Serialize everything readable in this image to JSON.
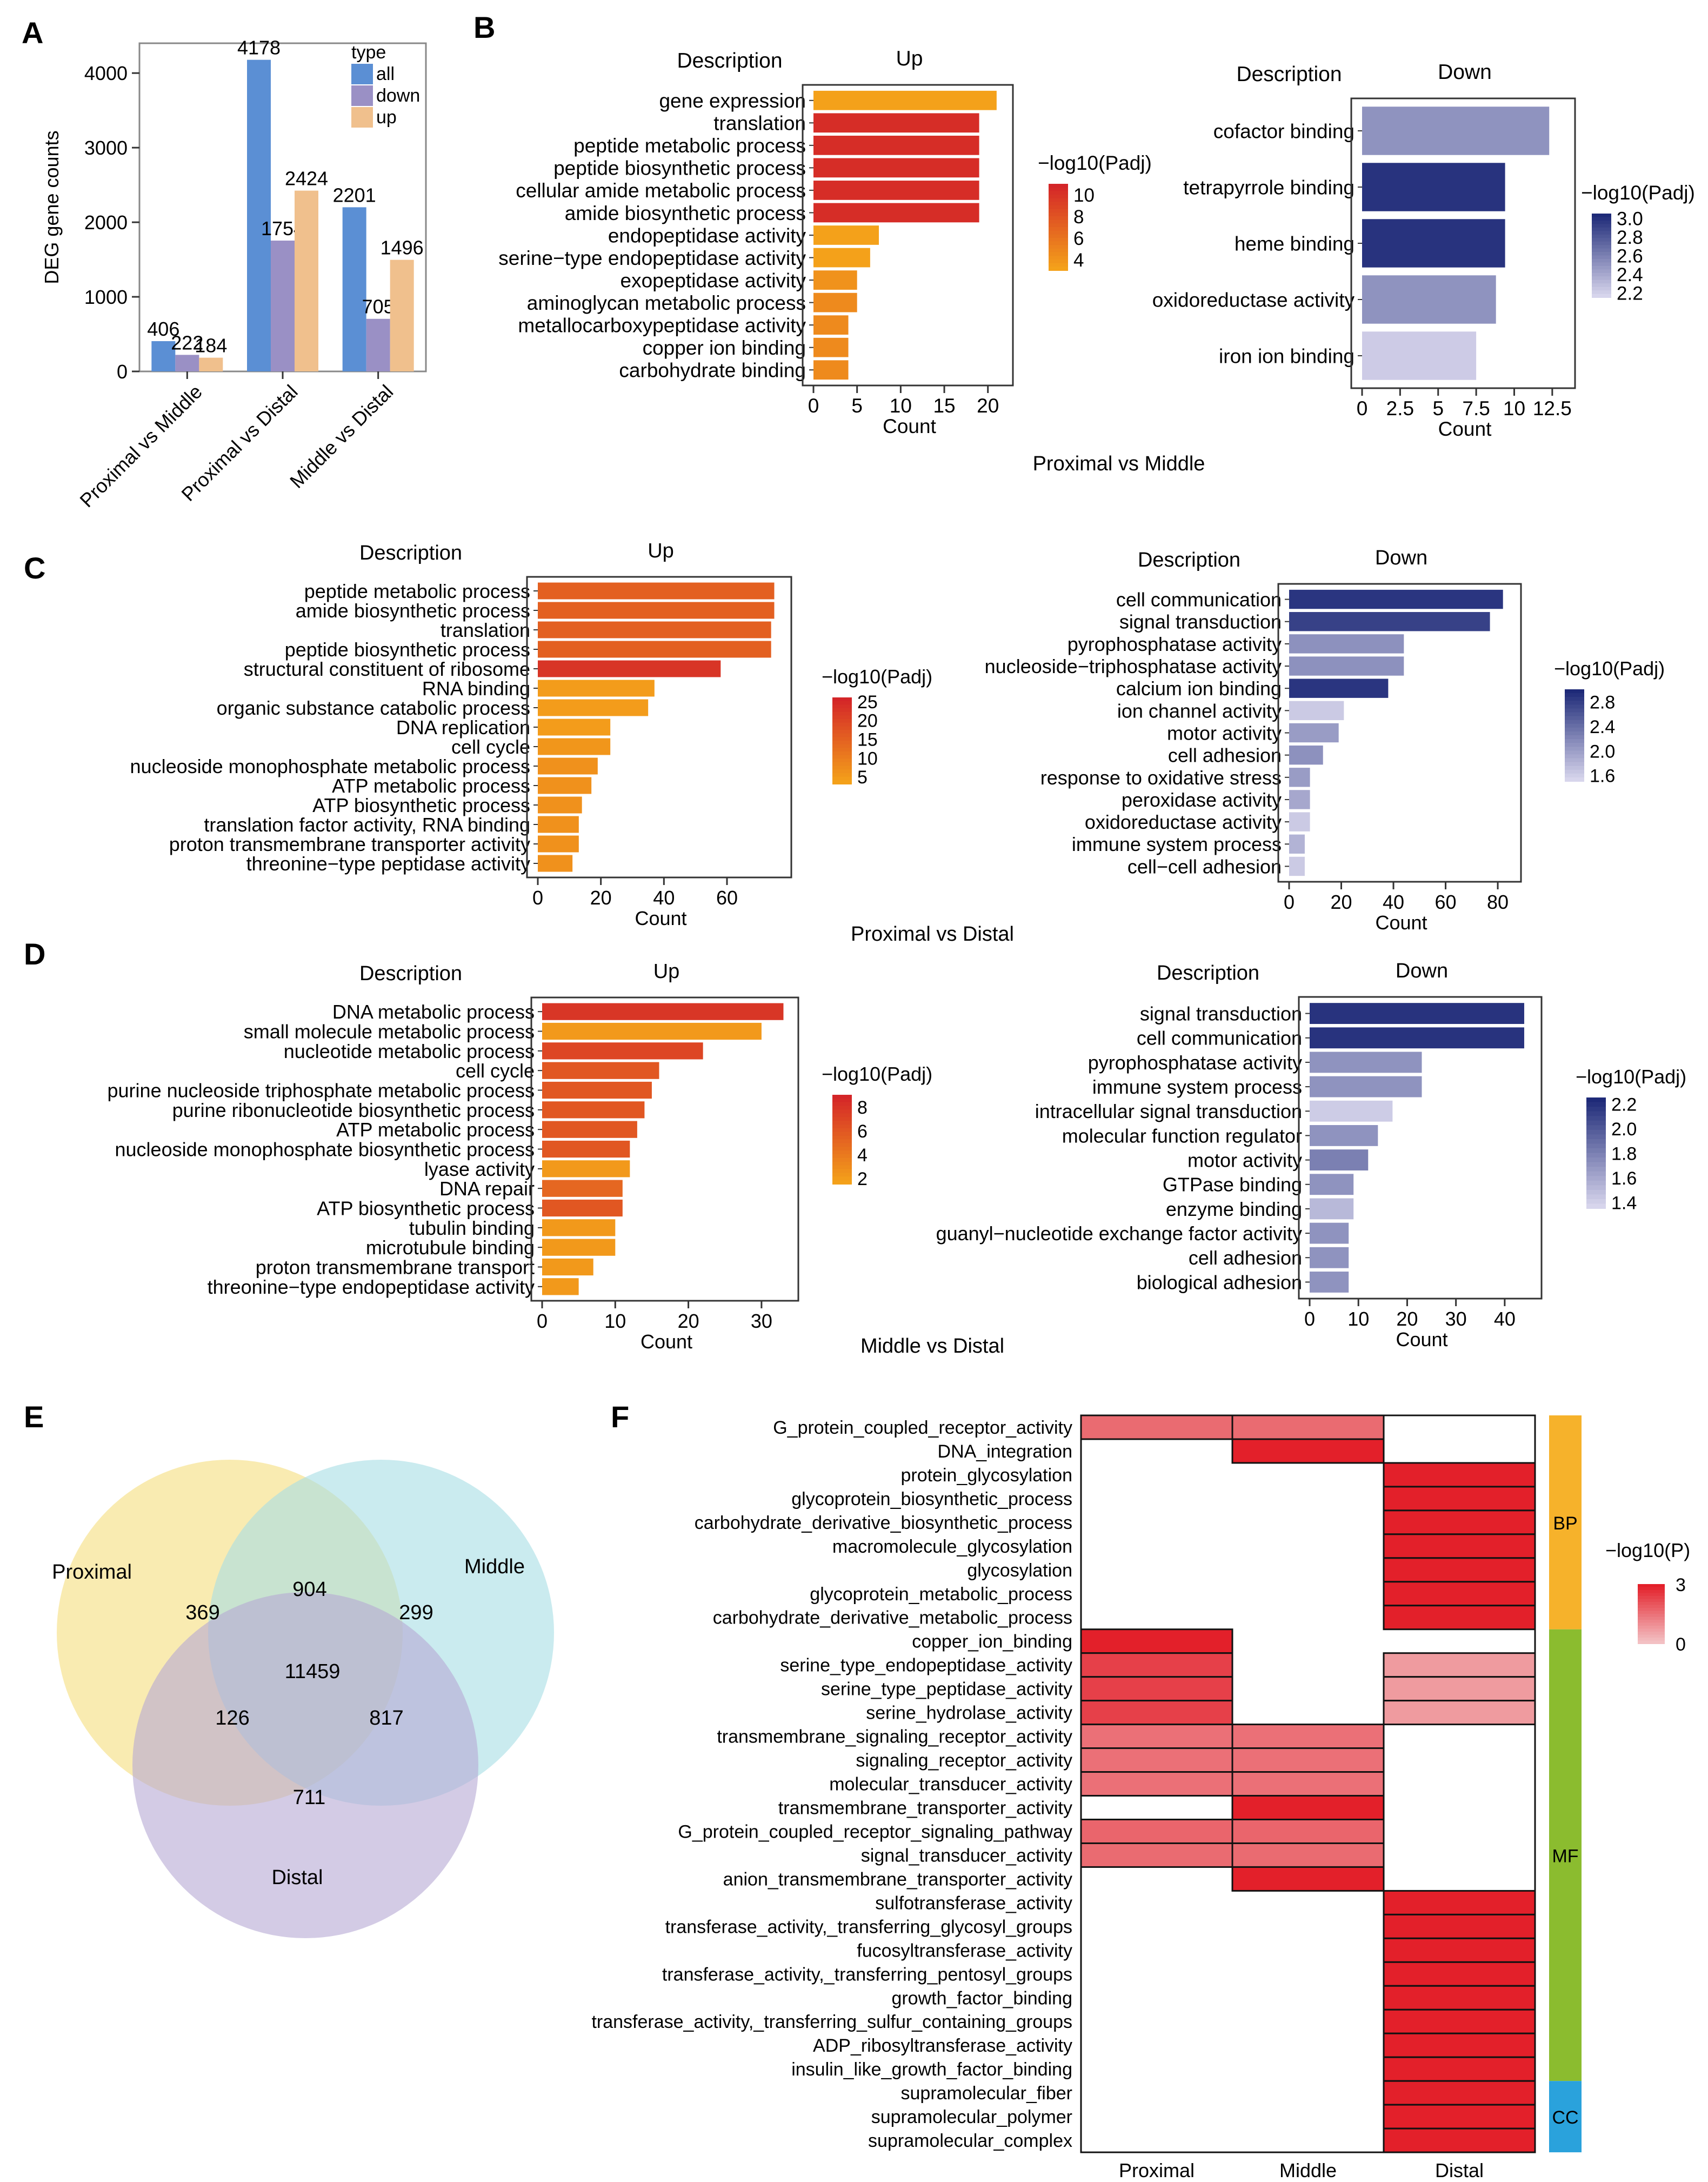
{
  "colors": {
    "all": "#5b8fd4",
    "down": "#9a90c5",
    "up": "#f0c08d",
    "up_high": "#d42528",
    "up_low": "#f4a11a",
    "down_high": "#1e2a78",
    "down_low": "#d7d5ec",
    "heat_high": "#e3202a",
    "heat_low": "#f3c0c3",
    "bp": "#f6b22b",
    "mf": "#8bbc2f",
    "cc": "#2aa2dc",
    "venn_proximal": "#f7e290",
    "venn_middle": "#a7dde4",
    "venn_distal": "#b6a8d3"
  },
  "panel_letters": {
    "a": "A",
    "b": "B",
    "c": "C",
    "d": "D",
    "e": "E",
    "f": "F"
  },
  "chart_data": [
    {
      "id": "A",
      "type": "bar",
      "categories": [
        "Proximal vs Middle",
        "Proximal vs Distal",
        "Middle vs Distal"
      ],
      "series": [
        {
          "name": "all",
          "values": [
            406,
            4178,
            2201
          ]
        },
        {
          "name": "down",
          "values": [
            222,
            1754,
            705
          ]
        },
        {
          "name": "up",
          "values": [
            184,
            2424,
            1496
          ]
        }
      ],
      "ylabel": "DEG gene counts",
      "ylim": [
        0,
        4400
      ],
      "yticks": [
        "0",
        "1000",
        "2000",
        "3000",
        "4000"
      ],
      "legend_title": "type",
      "legend_labels": [
        "all",
        "down",
        "up"
      ]
    },
    {
      "id": "B-up",
      "type": "bar",
      "orientation": "horizontal",
      "header_desc": "Description",
      "header_dir": "Up",
      "categories": [
        "gene expression",
        "translation",
        "peptide metabolic process",
        "peptide biosynthetic process",
        "cellular amide metabolic process",
        "amide biosynthetic process",
        "endopeptidase activity",
        "serine−type endopeptidase activity",
        "exopeptidase activity",
        "aminoglycan metabolic process",
        "metallocarboxypeptidase activity",
        "copper ion binding",
        "carbohydrate binding"
      ],
      "values": [
        21,
        19,
        19,
        19,
        19,
        19,
        7.5,
        6.5,
        5,
        5,
        4,
        4,
        4
      ],
      "color_values": [
        3,
        10.5,
        10.5,
        10.5,
        10.5,
        10.5,
        3,
        3,
        4,
        4.5,
        4.5,
        4.5,
        4.5
      ],
      "xlim": [
        0,
        22
      ],
      "xticks": [
        "0",
        "5",
        "10",
        "15",
        "20"
      ],
      "xlabel": "Count",
      "legend_title": "−log10(Padj)",
      "legend_ticks": [
        "10",
        "8",
        "6",
        "4"
      ],
      "legend_range": [
        3,
        11
      ]
    },
    {
      "id": "B-down",
      "type": "bar",
      "orientation": "horizontal",
      "header_desc": "Description",
      "header_dir": "Down",
      "categories": [
        "cofactor binding",
        "tetrapyrrole binding",
        "heme binding",
        "oxidoreductase activity",
        "iron ion binding"
      ],
      "values": [
        12.3,
        9.4,
        9.4,
        8.8,
        7.5
      ],
      "color_values": [
        2.5,
        3.0,
        3.0,
        2.5,
        2.2
      ],
      "xlim": [
        0,
        13.5
      ],
      "xticks": [
        "0",
        "2.5",
        "5",
        "7.5",
        "10",
        "12.5"
      ],
      "xlabel": "Count",
      "legend_title": "−log10(Padj)",
      "legend_ticks": [
        "3.0",
        "2.8",
        "2.6",
        "2.4",
        "2.2"
      ],
      "legend_range": [
        2.15,
        3.05
      ]
    },
    {
      "id": "C-up",
      "type": "bar",
      "orientation": "horizontal",
      "header_desc": "Description",
      "header_dir": "Up",
      "categories": [
        "peptide metabolic process",
        "amide biosynthetic process",
        "translation",
        "peptide biosynthetic process",
        "structural constituent of ribosome",
        "RNA binding",
        "organic substance catabolic process",
        "DNA replication",
        "cell cycle",
        "nucleoside monophosphate metabolic process",
        "ATP metabolic process",
        "ATP biosynthetic process",
        "translation factor activity, RNA binding",
        "proton transmembrane transporter activity",
        "threonine−type peptidase activity"
      ],
      "values": [
        75,
        75,
        74,
        74,
        58,
        37,
        35,
        23,
        23,
        19,
        17,
        14,
        13,
        13,
        11
      ],
      "color_values": [
        15,
        15,
        15,
        15,
        23,
        4,
        4,
        4,
        5,
        6,
        6,
        6,
        6,
        6,
        6
      ],
      "xlim": [
        0,
        78
      ],
      "xticks": [
        "0",
        "20",
        "40",
        "60"
      ],
      "xlabel": "Count",
      "legend_title": "−log10(Padj)",
      "legend_ticks": [
        "25",
        "20",
        "15",
        "10",
        "5"
      ],
      "legend_range": [
        3,
        26
      ]
    },
    {
      "id": "C-down",
      "type": "bar",
      "orientation": "horizontal",
      "header_desc": "Description",
      "header_dir": "Down",
      "categories": [
        "cell communication",
        "signal transduction",
        "pyrophosphatase activity",
        "nucleoside−triphosphatase activity",
        "calcium ion binding",
        "ion channel activity",
        "motor activity",
        "cell adhesion",
        "response to oxidative stress",
        "peroxidase activity",
        "oxidoreductase activity",
        "immune system process",
        "cell−cell adhesion"
      ],
      "values": [
        82,
        77,
        44,
        44,
        38,
        21,
        19,
        13,
        8,
        8,
        8,
        6,
        6
      ],
      "color_values": [
        2.9,
        2.8,
        2.1,
        2.1,
        2.9,
        1.6,
        2.0,
        2.1,
        2.0,
        1.9,
        1.6,
        1.8,
        1.6
      ],
      "xlim": [
        0,
        86
      ],
      "xticks": [
        "0",
        "20",
        "40",
        "60",
        "80"
      ],
      "xlabel": "Count",
      "legend_title": "−log10(Padj)",
      "legend_ticks": [
        "2.8",
        "2.4",
        "2.0",
        "1.6"
      ],
      "legend_range": [
        1.5,
        3.0
      ]
    },
    {
      "id": "D-up",
      "type": "bar",
      "orientation": "horizontal",
      "header_desc": "Description",
      "header_dir": "Up",
      "categories": [
        "DNA metabolic process",
        "small molecule metabolic process",
        "nucleotide metabolic process",
        "cell cycle",
        "purine nucleoside triphosphate metabolic process",
        "purine ribonucleotide biosynthetic process",
        "ATP metabolic process",
        "nucleoside monophosphate biosynthetic process",
        "lyase activity",
        "DNA repair",
        "ATP biosynthetic process",
        "tubulin binding",
        "microtubule binding",
        "proton transmembrane transport",
        "threonine−type endopeptidase activity"
      ],
      "values": [
        33,
        30,
        22,
        16,
        15,
        14,
        13,
        12,
        12,
        11,
        11,
        10,
        10,
        7,
        5
      ],
      "color_values": [
        8,
        2,
        7,
        6,
        6,
        6,
        6,
        6,
        2,
        5,
        6,
        2,
        2,
        2,
        2
      ],
      "xlim": [
        0,
        34
      ],
      "xticks": [
        "0",
        "10",
        "20",
        "30"
      ],
      "xlabel": "Count",
      "legend_title": "−log10(Padj)",
      "legend_ticks": [
        "8",
        "6",
        "4",
        "2"
      ],
      "legend_range": [
        1.5,
        9
      ]
    },
    {
      "id": "D-down",
      "type": "bar",
      "orientation": "horizontal",
      "header_desc": "Description",
      "header_dir": "Down",
      "categories": [
        "signal transduction",
        "cell communication",
        "pyrophosphatase activity",
        "immune system process",
        "intracellular signal transduction",
        "molecular function regulator",
        "motor activity",
        "GTPase binding",
        "enzyme binding",
        "guanyl−nucleotide exchange factor activity",
        "cell adhesion",
        "biological adhesion"
      ],
      "values": [
        44,
        44,
        23,
        23,
        17,
        14,
        12,
        9,
        9,
        8,
        8,
        8
      ],
      "color_values": [
        2.2,
        2.2,
        1.7,
        1.7,
        1.4,
        1.7,
        1.8,
        1.7,
        1.5,
        1.7,
        1.7,
        1.7
      ],
      "xlim": [
        0,
        46
      ],
      "xticks": [
        "0",
        "10",
        "20",
        "30",
        "40"
      ],
      "xlabel": "Count",
      "legend_title": "−log10(Padj)",
      "legend_ticks": [
        "2.2",
        "2.0",
        "1.8",
        "1.6",
        "1.4"
      ],
      "legend_range": [
        1.35,
        2.25
      ]
    },
    {
      "id": "F",
      "type": "heatmap",
      "rows": [
        "G_protein_coupled_receptor_activity",
        "DNA_integration",
        "protein_glycosylation",
        "glycoprotein_biosynthetic_process",
        "carbohydrate_derivative_biosynthetic_process",
        "macromolecule_glycosylation",
        "glycosylation",
        "glycoprotein_metabolic_process",
        "carbohydrate_derivative_metabolic_process",
        "copper_ion_binding",
        "serine_type_endopeptidase_activity",
        "serine_type_peptidase_activity",
        "serine_hydrolase_activity",
        "transmembrane_signaling_receptor_activity",
        "signaling_receptor_activity",
        "molecular_transducer_activity",
        "transmembrane_transporter_activity",
        "G_protein_coupled_receptor_signaling_pathway",
        "signal_transducer_activity",
        "anion_transmembrane_transporter_activity",
        "sulfotransferase_activity",
        "transferase_activity,_transferring_glycosyl_groups",
        "fucosyltransferase_activity",
        "transferase_activity,_transferring_pentosyl_groups",
        "growth_factor_binding",
        "transferase_activity,_transferring_sulfur_containing_groups",
        "ADP_ribosyltransferase_activity",
        "insulin_like_growth_factor_binding",
        "supramolecular_fiber",
        "supramolecular_polymer",
        "supramolecular_complex"
      ],
      "columns": [
        "Proximal",
        "Middle",
        "Distal"
      ],
      "values": [
        [
          1.6,
          1.6,
          null
        ],
        [
          null,
          3,
          null
        ],
        [
          null,
          null,
          3
        ],
        [
          null,
          null,
          3
        ],
        [
          null,
          null,
          3
        ],
        [
          null,
          null,
          3
        ],
        [
          null,
          null,
          3
        ],
        [
          null,
          null,
          3
        ],
        [
          null,
          null,
          3
        ],
        [
          3,
          null,
          null
        ],
        [
          2.4,
          null,
          0.7
        ],
        [
          2.4,
          null,
          0.7
        ],
        [
          2.4,
          null,
          0.7
        ],
        [
          1.5,
          1.5,
          null
        ],
        [
          1.5,
          1.5,
          null
        ],
        [
          1.5,
          1.5,
          null
        ],
        [
          null,
          3,
          null
        ],
        [
          1.7,
          1.7,
          null
        ],
        [
          1.6,
          1.6,
          null
        ],
        [
          null,
          3,
          null
        ],
        [
          null,
          null,
          3
        ],
        [
          null,
          null,
          3
        ],
        [
          null,
          null,
          3
        ],
        [
          null,
          null,
          3
        ],
        [
          null,
          null,
          3
        ],
        [
          null,
          null,
          3
        ],
        [
          null,
          null,
          3
        ],
        [
          null,
          null,
          3
        ],
        [
          null,
          null,
          3
        ],
        [
          null,
          null,
          3
        ],
        [
          null,
          null,
          3
        ]
      ],
      "groups": [
        {
          "name": "BP",
          "start": 0,
          "end": 9
        },
        {
          "name": "MF",
          "start": 9,
          "end": 28
        },
        {
          "name": "CC",
          "start": 28,
          "end": 31
        }
      ],
      "legend_title": "−log10(P)",
      "legend_ticks": [
        "3",
        "0"
      ],
      "legend_range": [
        0,
        3
      ]
    }
  ],
  "panelB": {
    "caption": "Proximal vs Middle"
  },
  "panelC": {
    "caption": "Proximal vs Distal"
  },
  "panelD": {
    "caption": "Middle vs Distal"
  },
  "venn": {
    "labels": {
      "proximal": "Proximal",
      "middle": "Middle",
      "distal": "Distal"
    },
    "counts": {
      "proximal_only": "369",
      "middle_only": "299",
      "distal_only": "711",
      "proximal_middle": "904",
      "proximal_distal": "126",
      "middle_distal": "817",
      "all": "11459"
    }
  }
}
